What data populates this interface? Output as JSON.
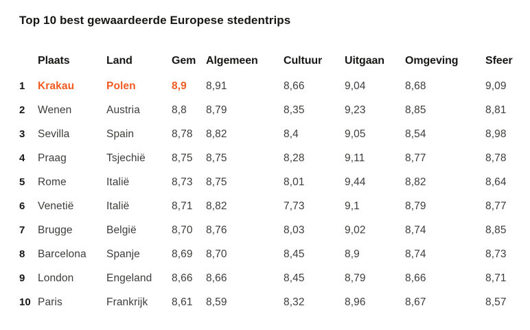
{
  "title": "Top 10 best gewaardeerde Europese stedentrips",
  "colors": {
    "accent": "#f15b22",
    "heading": "#161615",
    "body": "#3c3c3b"
  },
  "chart_data": {
    "type": "table",
    "title": "Top 10 best gewaardeerde Europese stedentrips",
    "columns": [
      "Plaats",
      "Land",
      "Gem",
      "Algemeen",
      "Cultuur",
      "Uitgaan",
      "Omgeving",
      "Sfeer"
    ],
    "decimal_separator": ",",
    "highlighted_rank": "1",
    "rows": [
      {
        "rank": "1",
        "plaats": "Krakau",
        "land": "Polen",
        "gem": "8,9",
        "algemeen": "8,91",
        "cultuur": "8,66",
        "uitgaan": "9,04",
        "omgeving": "8,68",
        "sfeer": "9,09",
        "highlight": true
      },
      {
        "rank": "2",
        "plaats": "Wenen",
        "land": "Austria",
        "gem": "8,8",
        "algemeen": "8,79",
        "cultuur": "8,35",
        "uitgaan": "9,23",
        "omgeving": "8,85",
        "sfeer": "8,81",
        "highlight": false
      },
      {
        "rank": "3",
        "plaats": "Sevilla",
        "land": "Spain",
        "gem": "8,78",
        "algemeen": "8,82",
        "cultuur": "8,4",
        "uitgaan": "9,05",
        "omgeving": "8,54",
        "sfeer": "8,98",
        "highlight": false
      },
      {
        "rank": "4",
        "plaats": "Praag",
        "land": "Tsjechië",
        "gem": "8,75",
        "algemeen": "8,75",
        "cultuur": "8,28",
        "uitgaan": "9,11",
        "omgeving": "8,77",
        "sfeer": "8,78",
        "highlight": false
      },
      {
        "rank": "5",
        "plaats": "Rome",
        "land": "Italië",
        "gem": "8,73",
        "algemeen": "8,75",
        "cultuur": "8,01",
        "uitgaan": "9,44",
        "omgeving": "8,82",
        "sfeer": "8,64",
        "highlight": false
      },
      {
        "rank": "6",
        "plaats": "Venetië",
        "land": "Italië",
        "gem": "8,71",
        "algemeen": "8,82",
        "cultuur": "7,73",
        "uitgaan": "9,1",
        "omgeving": "8,79",
        "sfeer": "8,77",
        "highlight": false
      },
      {
        "rank": "7",
        "plaats": "Brugge",
        "land": "België",
        "gem": "8,70",
        "algemeen": "8,76",
        "cultuur": "8,03",
        "uitgaan": "9,02",
        "omgeving": "8,74",
        "sfeer": "8,85",
        "highlight": false
      },
      {
        "rank": "8",
        "plaats": "Barcelona",
        "land": "Spanje",
        "gem": "8,69",
        "algemeen": "8,70",
        "cultuur": "8,45",
        "uitgaan": "8,9",
        "omgeving": "8,74",
        "sfeer": "8,73",
        "highlight": false
      },
      {
        "rank": "9",
        "plaats": "London",
        "land": "Engeland",
        "gem": "8,66",
        "algemeen": "8,66",
        "cultuur": "8,45",
        "uitgaan": "8,79",
        "omgeving": "8,66",
        "sfeer": "8,71",
        "highlight": false
      },
      {
        "rank": "10",
        "plaats": "Paris",
        "land": "Frankrijk",
        "gem": "8,61",
        "algemeen": "8,59",
        "cultuur": "8,32",
        "uitgaan": "8,96",
        "omgeving": "8,67",
        "sfeer": "8,57",
        "highlight": false
      }
    ]
  }
}
